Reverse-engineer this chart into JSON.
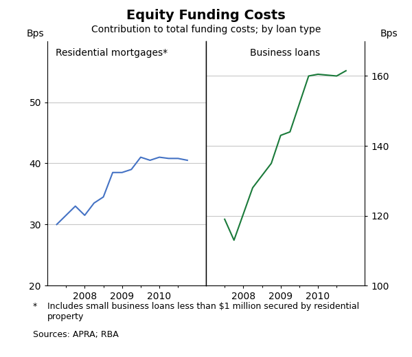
{
  "title": "Equity Funding Costs",
  "subtitle": "Contribution to total funding costs; by loan type",
  "left_panel_label": "Residential mortgages*",
  "right_panel_label": "Business loans",
  "left_ylabel": "Bps",
  "right_ylabel": "Bps",
  "left_ylim": [
    20,
    60
  ],
  "right_ylim": [
    100,
    170
  ],
  "left_yticks": [
    20,
    30,
    40,
    50
  ],
  "right_yticks": [
    100,
    120,
    140,
    160
  ],
  "left_color": "#4472C4",
  "right_color": "#1a7a3a",
  "background_color": "#ffffff",
  "grid_color": "#c8c8c8",
  "tick_label_size": 10,
  "title_fontsize": 14,
  "subtitle_fontsize": 10,
  "left_x": [
    2007.25,
    2007.75,
    2008.0,
    2008.25,
    2008.5,
    2008.75,
    2009.0,
    2009.25,
    2009.5,
    2009.75,
    2010.0,
    2010.25,
    2010.5,
    2010.75
  ],
  "left_y": [
    30.0,
    33.0,
    31.5,
    33.5,
    34.5,
    38.5,
    38.5,
    39.0,
    41.0,
    40.5,
    41.0,
    40.8,
    40.8,
    40.5
  ],
  "right_x": [
    2007.5,
    2007.75,
    2008.25,
    2008.75,
    2009.0,
    2009.25,
    2009.5,
    2009.75,
    2010.0,
    2010.5,
    2010.75
  ],
  "right_y": [
    119.0,
    113.0,
    128.0,
    135.0,
    143.0,
    144.0,
    152.0,
    160.0,
    160.5,
    160.0,
    161.5
  ]
}
